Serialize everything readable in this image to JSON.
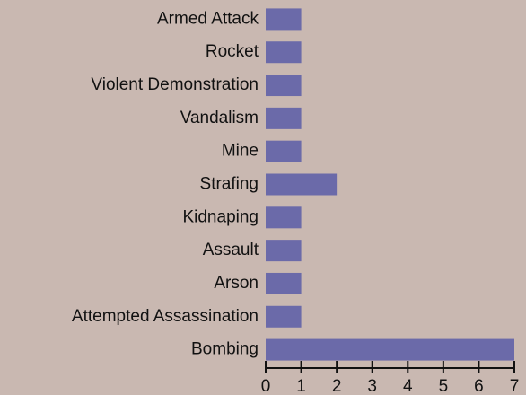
{
  "chart_data": {
    "type": "bar",
    "orientation": "horizontal",
    "categories": [
      "Armed Attack",
      "Rocket",
      "Violent Demonstration",
      "Vandalism",
      "Mine",
      "Strafing",
      "Kidnaping",
      "Assault",
      "Arson",
      "Attempted Assassination",
      "Bombing"
    ],
    "values": [
      1,
      1,
      1,
      1,
      1,
      2,
      1,
      1,
      1,
      1,
      7
    ],
    "color": "#6b6aa9",
    "xlim": [
      0,
      7
    ],
    "xticks": [
      0,
      1,
      2,
      3,
      4,
      5,
      6,
      7
    ],
    "grid": false
  }
}
